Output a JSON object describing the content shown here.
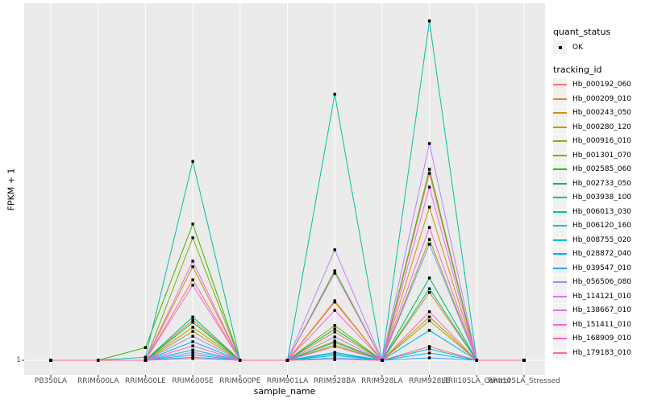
{
  "figure": {
    "background": "#FFFFFF",
    "panel_background": "#EBEBEB",
    "gridline_color": "#FFFFFF",
    "axis_text_color": "#4D4D4D",
    "point_color": "#000000",
    "legend_key_background": "#F2F2F2"
  },
  "chart_data": {
    "type": "line",
    "title": "",
    "xlabel": "sample_name",
    "ylabel": "FPKM + 1",
    "x_categories": [
      "PB350LA",
      "RRIM600LA",
      "RRIM600LE",
      "RRIM600SE",
      "RRIM600PE",
      "RRIM901LA",
      "RRIM928BA",
      "RRIM928LA",
      "RRIM928LE",
      "RRII105LA_Control",
      "RRII105LA_Stressed"
    ],
    "y_ticks": [
      "1"
    ],
    "y_axis_note": "log-style axis with only FPKM+1 = 1 labeled; series values are relative heights (0-1) above the baseline estimated from pixels",
    "grid": "white major gridlines on gray panel",
    "legend": {
      "position": "right",
      "quant_status_title": "quant_status",
      "quant_status_items": [
        {
          "label": "OK",
          "shape": "point"
        }
      ],
      "tracking_id_title": "tracking_id"
    },
    "series": [
      {
        "id": "Hb_000192_060",
        "color": "#F8766D",
        "values": [
          0,
          0,
          0,
          0.234,
          0,
          0,
          0.173,
          0,
          0.543,
          0,
          0
        ]
      },
      {
        "id": "Hb_000209_010",
        "color": "#EA8331",
        "values": [
          0,
          0,
          0,
          0.117,
          0,
          0,
          0.082,
          0,
          0.197,
          0,
          0
        ]
      },
      {
        "id": "Hb_000243_050",
        "color": "#D89000",
        "values": [
          0,
          0,
          0,
          0.272,
          0,
          0,
          0.169,
          0,
          0.445,
          0,
          0
        ]
      },
      {
        "id": "Hb_000280_120",
        "color": "#C09B00",
        "values": [
          0,
          0,
          0,
          0.096,
          0,
          0,
          0.056,
          0,
          0.126,
          0,
          0
        ]
      },
      {
        "id": "Hb_000916_010",
        "color": "#A3A500",
        "values": [
          0,
          0,
          0,
          0.084,
          0,
          0,
          0.044,
          0,
          0.115,
          0,
          0
        ]
      },
      {
        "id": "Hb_001301_070",
        "color": "#7CAE00",
        "values": [
          0,
          0,
          0,
          0.356,
          0,
          0,
          0.101,
          0,
          0.351,
          0,
          0
        ]
      },
      {
        "id": "Hb_002585_060",
        "color": "#39B600",
        "values": [
          0,
          0,
          0.037,
          0.396,
          0,
          0,
          0.26,
          0,
          0.555,
          0,
          0
        ]
      },
      {
        "id": "Hb_002733_050",
        "color": "#00BB4E",
        "values": [
          0,
          0,
          0,
          0.11,
          0,
          0,
          0.091,
          0,
          0.239,
          0,
          0
        ]
      },
      {
        "id": "Hb_003938_100",
        "color": "#00BF7D",
        "values": [
          0,
          0,
          0,
          0.126,
          0,
          0,
          0.052,
          0,
          0.208,
          0,
          0
        ]
      },
      {
        "id": "Hb_006013_030",
        "color": "#00C1A3",
        "values": [
          0,
          0,
          0.009,
          0.578,
          0,
          0,
          0.773,
          0,
          0.986,
          0,
          0
        ]
      },
      {
        "id": "Hb_006120_160",
        "color": "#00BFC4",
        "values": [
          0,
          0,
          0,
          0.03,
          0,
          0,
          0.019,
          0,
          0.033,
          0,
          0
        ]
      },
      {
        "id": "Hb_008755_020",
        "color": "#00BAE0",
        "values": [
          0,
          0,
          0,
          0.016,
          0,
          0,
          0.014,
          0,
          0.021,
          0,
          0
        ]
      },
      {
        "id": "Hb_028872_040",
        "color": "#00B0F6",
        "values": [
          0,
          0,
          0,
          0.054,
          0,
          0,
          0.023,
          0,
          0.087,
          0,
          0
        ]
      },
      {
        "id": "Hb_039547_010",
        "color": "#35A2FF",
        "values": [
          0,
          0,
          0,
          0.009,
          0,
          0,
          0.007,
          0,
          0.007,
          0,
          0
        ]
      },
      {
        "id": "Hb_056506_080",
        "color": "#9590FF",
        "values": [
          0,
          0,
          0,
          0.07,
          0,
          0,
          0.068,
          0,
          0.337,
          0,
          0
        ]
      },
      {
        "id": "Hb_114121_010",
        "color": "#C77CFF",
        "values": [
          0,
          0,
          0,
          0.023,
          0,
          0,
          0.321,
          0,
          0.63,
          0,
          0
        ]
      },
      {
        "id": "Hb_138667_010",
        "color": "#E76BF3",
        "values": [
          0,
          0,
          0,
          0.288,
          0,
          0,
          0.253,
          0,
          0.503,
          0,
          0
        ]
      },
      {
        "id": "Hb_151411_010",
        "color": "#FA62DB",
        "values": [
          0,
          0,
          0,
          0.218,
          0,
          0,
          0.145,
          0,
          0.386,
          0,
          0
        ]
      },
      {
        "id": "Hb_168909_010",
        "color": "#FF62BC",
        "values": [
          0,
          0,
          0,
          0.042,
          0,
          0,
          0.04,
          0,
          0.141,
          0,
          0
        ]
      },
      {
        "id": "Hb_179183_010",
        "color": "#FF6A98",
        "values": [
          0,
          0,
          0,
          0.005,
          0,
          0,
          0.002,
          0,
          0.04,
          0,
          0
        ]
      }
    ]
  }
}
